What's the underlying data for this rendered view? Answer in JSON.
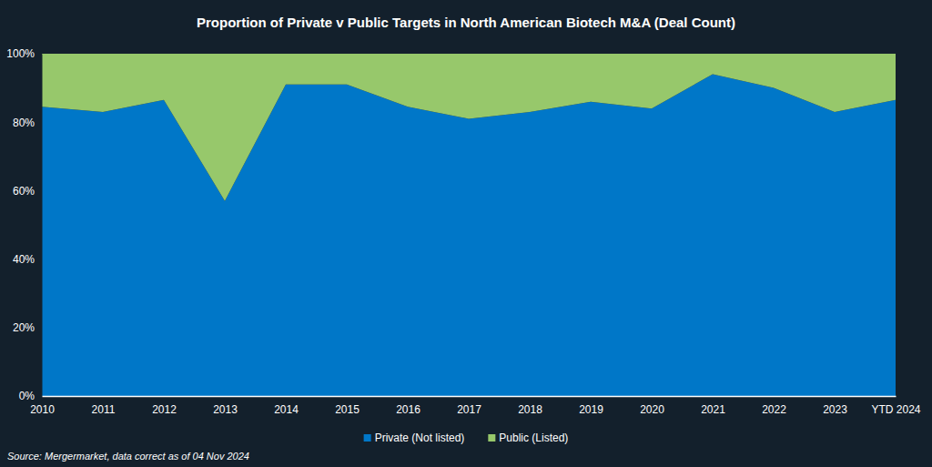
{
  "chart_data": {
    "type": "area",
    "title": "Proportion of Private v Public Targets in North American Biotech M&A (Deal Count)",
    "source": "Source: Mergermarket, data correct as of 04 Nov 2024",
    "categories": [
      "2010",
      "2011",
      "2012",
      "2013",
      "2014",
      "2015",
      "2016",
      "2017",
      "2018",
      "2019",
      "2020",
      "2021",
      "2022",
      "2023",
      "YTD 2024"
    ],
    "series": [
      {
        "name": "Private (Not listed)",
        "color": "#0077c8",
        "values": [
          84.5,
          83,
          86.5,
          57,
          91,
          91,
          84.5,
          81,
          83,
          86,
          84,
          94,
          90,
          83,
          86.5
        ]
      },
      {
        "name": "Public (Listed)",
        "color": "#97c86b",
        "values": [
          15.5,
          17,
          13.5,
          43,
          9,
          9,
          15.5,
          19,
          17,
          14,
          16,
          6,
          10,
          17,
          13.5
        ]
      }
    ],
    "stacked": true,
    "grid": false,
    "legend": "bottom",
    "ylim": [
      0,
      100
    ],
    "yticks": [
      {
        "value": 0,
        "label": "0%"
      },
      {
        "value": 20,
        "label": "20%"
      },
      {
        "value": 40,
        "label": "40%"
      },
      {
        "value": 60,
        "label": "60%"
      },
      {
        "value": 80,
        "label": "80%"
      },
      {
        "value": 100,
        "label": "100%"
      }
    ]
  }
}
